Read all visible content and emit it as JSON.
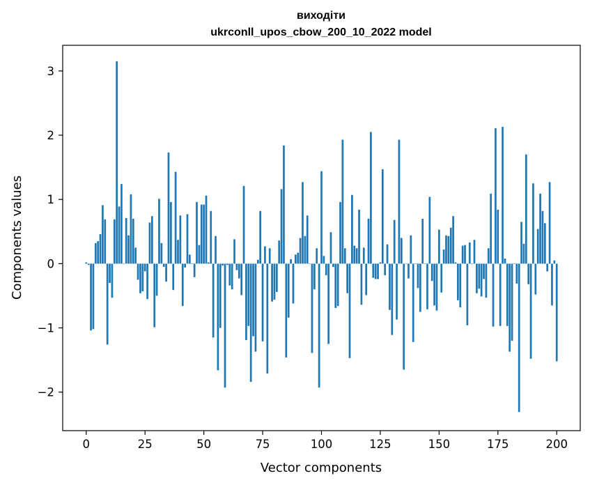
{
  "chart_data": {
    "type": "bar",
    "title": "виходіти",
    "subtitle": "ukrconll_upos_cbow_200_10_2022 model",
    "xlabel": "Vector components",
    "ylabel": "Components values",
    "xlim": [
      -10,
      210
    ],
    "ylim": [
      -2.6,
      3.4
    ],
    "xticks": [
      0,
      25,
      50,
      75,
      100,
      125,
      150,
      175,
      200
    ],
    "yticks": [
      -2,
      -1,
      0,
      1,
      2,
      3
    ],
    "ytick_labels": [
      "−2",
      "−1",
      "0",
      "1",
      "2",
      "3"
    ],
    "bar_color": "#1f77b4",
    "grid": false,
    "values": [
      0.02,
      -0.02,
      -1.04,
      -1.02,
      0.32,
      0.35,
      0.46,
      0.91,
      0.69,
      -1.26,
      -0.3,
      -0.53,
      0.69,
      3.15,
      0.89,
      1.24,
      0.0,
      0.71,
      0.44,
      1.08,
      0.7,
      0.25,
      -0.25,
      -0.46,
      -0.43,
      -0.12,
      -0.55,
      0.64,
      0.74,
      -0.99,
      -0.5,
      1.01,
      0.32,
      -0.05,
      -0.28,
      1.73,
      0.96,
      -0.41,
      1.43,
      0.37,
      0.75,
      -0.66,
      -0.06,
      0.77,
      0.14,
      0.0,
      -0.21,
      0.96,
      0.29,
      0.92,
      0.92,
      1.06,
      0.02,
      0.82,
      -1.15,
      0.43,
      -1.66,
      -1.0,
      -0.03,
      -1.93,
      -0.02,
      -0.34,
      -0.4,
      0.38,
      -0.1,
      -0.23,
      -0.49,
      1.21,
      -1.19,
      -0.97,
      -1.84,
      -1.13,
      -1.37,
      0.06,
      0.82,
      -1.21,
      0.27,
      -1.71,
      0.24,
      -0.59,
      -0.56,
      -0.44,
      0.36,
      1.16,
      1.84,
      -1.46,
      -0.84,
      0.07,
      -0.62,
      0.14,
      0.17,
      0.4,
      1.27,
      0.43,
      0.75,
      0.0,
      -1.39,
      -0.4,
      0.24,
      -1.93,
      1.44,
      0.12,
      -0.18,
      -1.25,
      0.49,
      -0.05,
      -0.69,
      -0.66,
      0.96,
      1.93,
      0.24,
      -0.46,
      -1.47,
      1.07,
      0.28,
      0.24,
      0.84,
      -0.64,
      0.25,
      -0.49,
      0.7,
      2.05,
      -0.22,
      -0.24,
      -0.24,
      0.02,
      1.47,
      -0.18,
      0.3,
      -0.72,
      -1.11,
      0.68,
      -0.87,
      1.93,
      0.4,
      -1.65,
      0.0,
      -0.23,
      0.44,
      -1.22,
      0.0,
      -0.38,
      -0.75,
      0.7,
      0.0,
      -0.71,
      1.04,
      -0.27,
      -0.65,
      -0.73,
      0.53,
      -0.45,
      0.22,
      0.44,
      0.43,
      0.56,
      0.74,
      0.02,
      -0.57,
      -0.68,
      0.28,
      0.29,
      -0.96,
      0.33,
      0.0,
      0.37,
      -0.46,
      -0.39,
      -0.51,
      -0.24,
      -0.53,
      0.24,
      1.09,
      -0.98,
      2.11,
      0.84,
      -0.97,
      2.13,
      0.08,
      -0.97,
      -1.37,
      -1.2,
      0.0,
      -0.31,
      -2.31,
      0.65,
      0.31,
      1.7,
      -0.32,
      -1.48,
      1.25,
      -0.48,
      0.54,
      1.09,
      0.82,
      0.63,
      -0.12,
      1.27,
      -0.65,
      0.05,
      -1.52
    ]
  }
}
